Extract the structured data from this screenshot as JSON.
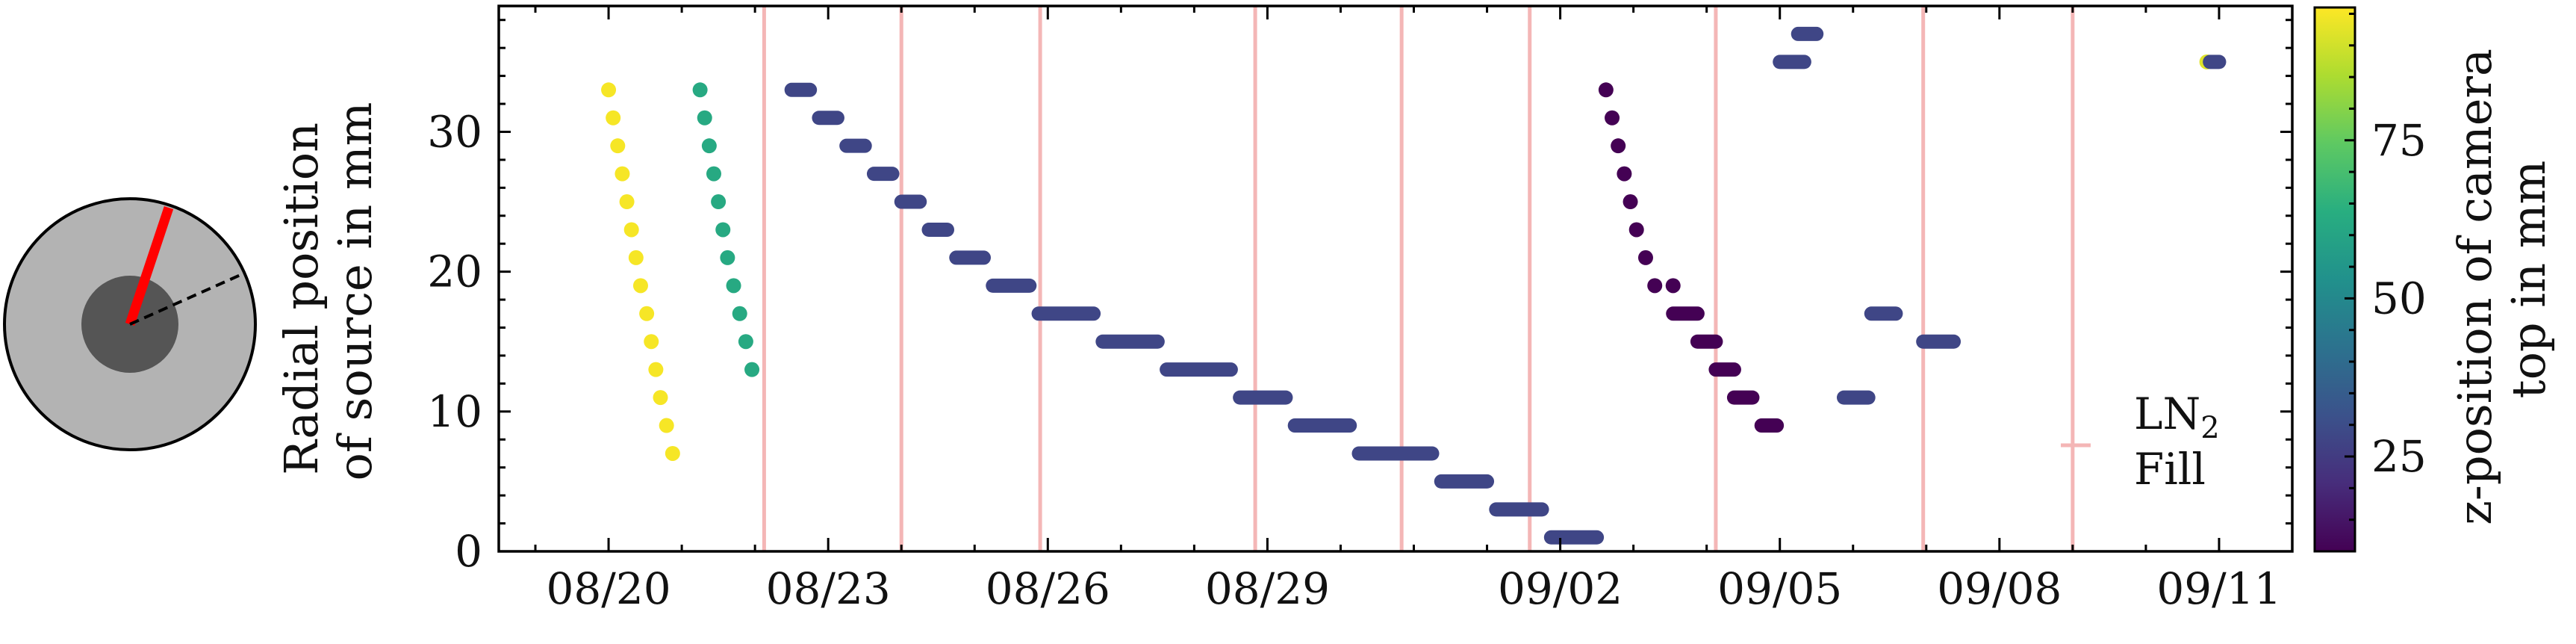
{
  "chart_data": {
    "type": "scatter",
    "title": "",
    "ylabel_line1": "Radial position",
    "ylabel_line2": "of source in mm",
    "xlabel": "",
    "xlim": [
      "2023-08-18T12:00",
      "2023-09-12T00:00"
    ],
    "ylim": [
      0,
      39
    ],
    "yticks": [
      0,
      10,
      20,
      30
    ],
    "xticks": [
      {
        "date": "2023-08-20",
        "label": "08/20"
      },
      {
        "date": "2023-08-23",
        "label": "08/23"
      },
      {
        "date": "2023-08-26",
        "label": "08/26"
      },
      {
        "date": "2023-08-29",
        "label": "08/29"
      },
      {
        "date": "2023-09-02",
        "label": "09/02"
      },
      {
        "date": "2023-09-05",
        "label": "09/05"
      },
      {
        "date": "2023-09-08",
        "label": "09/08"
      },
      {
        "date": "2023-09-11",
        "label": "09/11"
      }
    ],
    "grid": false,
    "colormap": "viridis",
    "colorbar": {
      "label_line1": "z-position of camera",
      "label_line2": "top in mm",
      "range": [
        10,
        96
      ],
      "ticks": [
        25,
        50,
        75
      ]
    },
    "legend": {
      "placement": "right",
      "label_line1": "LN",
      "label_sub": "2",
      "label_line2": "Fill",
      "color": "#f4b6b6"
    },
    "ln2_fills": [
      "2023-08-22T03:00",
      "2023-08-24T00:00",
      "2023-08-25T21:30",
      "2023-08-28T20:00",
      "2023-08-30T20:00",
      "2023-09-01T14:00",
      "2023-09-04T03:00",
      "2023-09-06T23:00",
      "2023-09-09T00:00"
    ],
    "series": [
      {
        "z": 95,
        "points": [
          [
            "2023-08-20T00:00",
            33
          ],
          [
            "2023-08-20T01:30",
            31
          ],
          [
            "2023-08-20T03:00",
            29
          ],
          [
            "2023-08-20T04:30",
            27
          ],
          [
            "2023-08-20T06:00",
            25
          ],
          [
            "2023-08-20T07:30",
            23
          ],
          [
            "2023-08-20T09:00",
            21
          ],
          [
            "2023-08-20T10:30",
            19
          ],
          [
            "2023-08-20T12:30",
            17
          ],
          [
            "2023-08-20T14:00",
            15
          ],
          [
            "2023-08-20T15:30",
            13
          ],
          [
            "2023-08-20T17:00",
            11
          ],
          [
            "2023-08-20T19:00",
            9
          ],
          [
            "2023-08-20T21:00",
            7
          ]
        ]
      },
      {
        "z": 62,
        "points": [
          [
            "2023-08-21T06:00",
            33
          ],
          [
            "2023-08-21T07:30",
            31
          ],
          [
            "2023-08-21T09:00",
            29
          ],
          [
            "2023-08-21T10:30",
            27
          ],
          [
            "2023-08-21T12:00",
            25
          ],
          [
            "2023-08-21T13:30",
            23
          ],
          [
            "2023-08-21T15:00",
            21
          ],
          [
            "2023-08-21T17:00",
            19
          ],
          [
            "2023-08-21T19:00",
            17
          ],
          [
            "2023-08-21T21:00",
            15
          ],
          [
            "2023-08-21T23:00",
            13
          ]
        ]
      },
      {
        "z": 28,
        "segments": [
          [
            "2023-08-22T12:00",
            "2023-08-22T18:00",
            33
          ],
          [
            "2023-08-22T21:00",
            "2023-08-23T03:00",
            31
          ],
          [
            "2023-08-23T06:00",
            "2023-08-23T12:00",
            29
          ],
          [
            "2023-08-23T15:00",
            "2023-08-23T21:00",
            27
          ],
          [
            "2023-08-24T00:00",
            "2023-08-24T06:00",
            25
          ],
          [
            "2023-08-24T09:00",
            "2023-08-24T15:00",
            23
          ],
          [
            "2023-08-24T18:00",
            "2023-08-25T03:00",
            21
          ],
          [
            "2023-08-25T06:00",
            "2023-08-25T18:00",
            19
          ],
          [
            "2023-08-25T21:00",
            "2023-08-26T15:00",
            17
          ],
          [
            "2023-08-26T18:00",
            "2023-08-27T12:00",
            15
          ],
          [
            "2023-08-27T15:00",
            "2023-08-28T12:00",
            13
          ],
          [
            "2023-08-28T15:00",
            "2023-08-29T06:00",
            11
          ],
          [
            "2023-08-29T09:00",
            "2023-08-30T03:00",
            9
          ],
          [
            "2023-08-30T06:00",
            "2023-08-31T06:00",
            7
          ],
          [
            "2023-08-31T09:00",
            "2023-09-01T00:00",
            5
          ],
          [
            "2023-09-01T03:00",
            "2023-09-01T18:00",
            3
          ],
          [
            "2023-09-01T21:00",
            "2023-09-02T12:00",
            1
          ]
        ]
      },
      {
        "z": 10,
        "points": [
          [
            "2023-09-02T15:00",
            33
          ],
          [
            "2023-09-02T17:00",
            31
          ],
          [
            "2023-09-02T19:00",
            29
          ],
          [
            "2023-09-02T21:00",
            27
          ],
          [
            "2023-09-02T23:00",
            25
          ],
          [
            "2023-09-03T01:00",
            23
          ],
          [
            "2023-09-03T04:00",
            21
          ],
          [
            "2023-09-03T07:00",
            19
          ],
          [
            "2023-09-03T13:00",
            19
          ]
        ],
        "segments": [
          [
            "2023-09-03T13:00",
            "2023-09-03T21:00",
            17
          ],
          [
            "2023-09-03T21:00",
            "2023-09-04T03:00",
            15
          ],
          [
            "2023-09-04T03:00",
            "2023-09-04T09:00",
            13
          ],
          [
            "2023-09-04T09:00",
            "2023-09-04T15:00",
            11
          ],
          [
            "2023-09-04T18:00",
            "2023-09-04T23:00",
            9
          ]
        ]
      },
      {
        "z": 28,
        "segments": [
          [
            "2023-09-05T06:00",
            "2023-09-05T12:00",
            37
          ],
          [
            "2023-09-05T00:00",
            "2023-09-05T08:00",
            35
          ],
          [
            "2023-09-06T06:00",
            "2023-09-06T14:00",
            17
          ],
          [
            "2023-09-06T23:00",
            "2023-09-07T09:00",
            15
          ],
          [
            "2023-09-05T21:00",
            "2023-09-06T05:00",
            11
          ]
        ]
      },
      {
        "z": 92,
        "points": [
          [
            "2023-09-10T20:00",
            35
          ]
        ]
      },
      {
        "z": 28,
        "segments": [
          [
            "2023-09-10T21:00",
            "2023-09-11T00:00",
            35
          ]
        ]
      }
    ]
  },
  "inset": {
    "description_color": "#ff0000"
  }
}
